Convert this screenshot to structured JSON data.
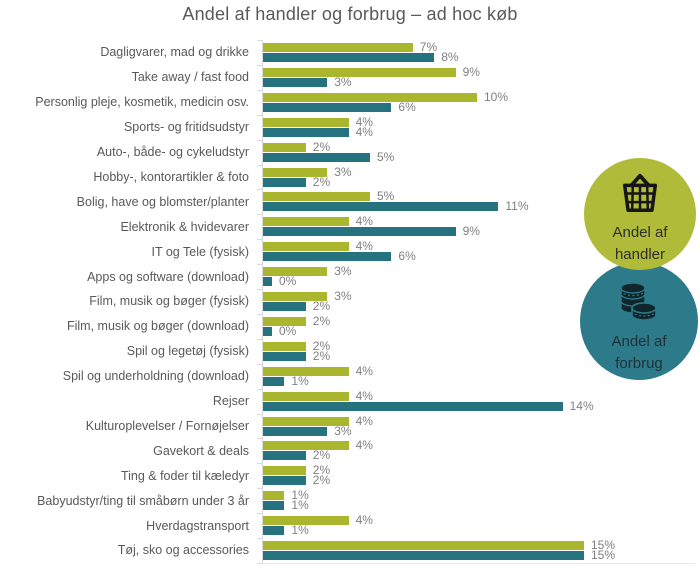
{
  "title": "Andel af handler og forbrug – ad hoc køb",
  "chart_data": {
    "type": "bar",
    "orientation": "horizontal",
    "unit": "%",
    "xlim": [
      0,
      16
    ],
    "grid": false,
    "legend_position": "right",
    "categories": [
      "Dagligvarer, mad og drikke",
      "Take away / fast food",
      "Personlig pleje, kosmetik, medicin osv.",
      "Sports- og fritidsudstyr",
      "Auto-, både- og cykeludstyr",
      "Hobby-, kontorartikler & foto",
      "Bolig, have og blomster/planter",
      "Elektronik & hvidevarer",
      "IT og Tele (fysisk)",
      "Apps og software (download)",
      "Film, musik og bøger (fysisk)",
      "Film, musik og bøger (download)",
      "Spil og legetøj (fysisk)",
      "Spil og underholdning (download)",
      "Rejser",
      "Kulturoplevelser / Fornøjelser",
      "Gavekort & deals",
      "Ting & foder til kæledyr",
      "Babyudstyr/ting til småbørn under 3 år",
      "Hverdagstransport",
      "Tøj, sko og accessories"
    ],
    "series": [
      {
        "name": "Andel af handler",
        "color": "#abb62f",
        "values": [
          7,
          9,
          10,
          4,
          2,
          3,
          5,
          4,
          4,
          3,
          3,
          2,
          2,
          4,
          4,
          4,
          4,
          2,
          1,
          4,
          15
        ]
      },
      {
        "name": "Andel af forbrug",
        "color": "#26737f",
        "values": [
          8,
          3,
          6,
          4,
          5,
          2,
          11,
          9,
          6,
          0,
          2,
          0,
          2,
          1,
          14,
          3,
          2,
          2,
          1,
          1,
          15
        ]
      }
    ],
    "value_label_suffix": "%"
  },
  "legend": {
    "items": [
      {
        "label": "Andel af handler",
        "icon": "basket-icon",
        "circle_color": "#b0bb39",
        "text_color": "#2d2d2d",
        "icon_color": "#161616"
      },
      {
        "label": "Andel af forbrug",
        "icon": "coins-icon",
        "circle_color": "#2c7a8a",
        "text_color": "#1f3238",
        "icon_color": "#10262b"
      }
    ]
  },
  "colors": {
    "title_text": "#595959",
    "category_text": "#595959",
    "value_text": "#7f7f7f",
    "axis": "#d9d9d9"
  }
}
